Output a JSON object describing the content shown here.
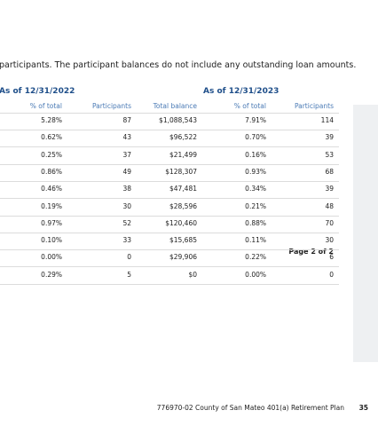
{
  "intro": "participants. The participant balances do not include any outstanding loan amounts.",
  "table": {
    "groups": [
      "As of 12/31/2022",
      "As of 12/31/2023"
    ],
    "columns": [
      "% of total",
      "Participants",
      "Total balance",
      "% of total",
      "Participants"
    ],
    "rows": [
      [
        "5.28%",
        "87",
        "$1,088,543",
        "7.91%",
        "114"
      ],
      [
        "0.62%",
        "43",
        "$96,522",
        "0.70%",
        "39"
      ],
      [
        "0.25%",
        "37",
        "$21,499",
        "0.16%",
        "53"
      ],
      [
        "0.86%",
        "49",
        "$128,307",
        "0.93%",
        "68"
      ],
      [
        "0.46%",
        "38",
        "$47,481",
        "0.34%",
        "39"
      ],
      [
        "0.19%",
        "30",
        "$28,596",
        "0.21%",
        "48"
      ],
      [
        "0.97%",
        "52",
        "$120,460",
        "0.88%",
        "70"
      ],
      [
        "0.10%",
        "33",
        "$15,685",
        "0.11%",
        "30"
      ],
      [
        "0.00%",
        "0",
        "$29,906",
        "0.22%",
        "6"
      ],
      [
        "0.29%",
        "5",
        "$0",
        "0.00%",
        "0"
      ]
    ]
  },
  "page_indicator": "Page 2 of 2",
  "footer": {
    "plan": "776970-02 County of San Mateo 401(a) Retirement Plan",
    "page_number": "35"
  }
}
